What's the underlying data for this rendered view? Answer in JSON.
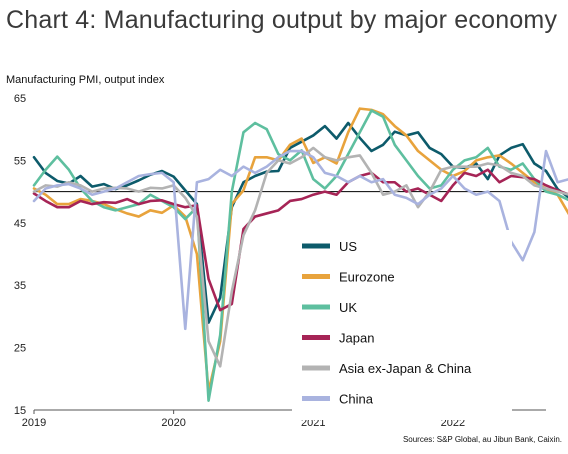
{
  "title": "Chart 4: Manufacturing output by major economy",
  "source": "Sources: S&P Global, au Jibun Bank, Caixin.",
  "chart_data": {
    "type": "line",
    "ylabel": "Manufacturing PMI, output index",
    "xlabel": "",
    "ylim": [
      15,
      65
    ],
    "yticks": [
      15,
      25,
      35,
      45,
      55,
      65
    ],
    "reference_line": 50,
    "xlim": [
      0,
      44
    ],
    "xtick_labels": [
      {
        "label": "2019",
        "x": 0
      },
      {
        "label": "2020",
        "x": 12
      },
      {
        "label": "2021",
        "x": 24
      },
      {
        "label": "2022",
        "x": 36
      }
    ],
    "legend_position": "center",
    "series": [
      {
        "name": "US",
        "color": "#0d5b6b",
        "values": [
          55.5,
          53.0,
          51.7,
          51.3,
          52.5,
          50.8,
          51.2,
          50.4,
          51.0,
          51.8,
          52.7,
          53.3,
          52.4,
          50.2,
          48.0,
          29.0,
          33.0,
          47.5,
          51.5,
          52.5,
          53.2,
          53.3,
          57.0,
          58.0,
          59.0,
          60.5,
          58.5,
          61.0,
          58.6,
          56.5,
          57.5,
          59.6,
          59.0,
          59.5,
          57.0,
          56.0,
          54.0,
          53.8,
          54.5,
          52.0,
          55.8,
          57.0,
          57.6,
          54.5,
          53.3,
          50.4,
          49.0
        ]
      },
      {
        "name": "Eurozone",
        "color": "#e8a33c",
        "values": [
          50.5,
          49.5,
          48.0,
          48.0,
          48.8,
          48.5,
          48.0,
          47.2,
          46.5,
          46.0,
          47.0,
          46.6,
          47.8,
          46.0,
          40.0,
          18.0,
          26.0,
          48.0,
          50.2,
          55.5,
          55.5,
          55.0,
          57.5,
          58.5,
          54.6,
          55.5,
          54.5,
          59.5,
          63.3,
          63.1,
          62.4,
          60.5,
          59.0,
          56.5,
          55.0,
          53.5,
          52.5,
          53.3,
          55.0,
          55.5,
          55.8,
          54.5,
          53.0,
          51.5,
          50.5,
          49.5,
          46.3
        ]
      },
      {
        "name": "UK",
        "color": "#5ebf9f",
        "values": [
          51.0,
          53.5,
          55.6,
          53.5,
          50.5,
          48.5,
          47.5,
          47.0,
          47.5,
          48.0,
          49.5,
          48.5,
          47.5,
          45.6,
          47.5,
          16.5,
          27.0,
          50.0,
          59.5,
          61.0,
          60.0,
          56.0,
          55.0,
          56.6,
          52.0,
          50.5,
          52.5,
          56.0,
          59.5,
          63.0,
          62.0,
          57.5,
          55.0,
          52.5,
          50.5,
          51.0,
          53.5,
          55.0,
          55.5,
          57.0,
          54.0,
          53.5,
          54.5,
          52.0,
          50.0,
          49.5,
          48.6
        ]
      },
      {
        "name": "Japan",
        "color": "#a62456",
        "values": [
          49.7,
          48.5,
          47.5,
          47.5,
          48.5,
          48.0,
          48.3,
          48.2,
          48.8,
          48.0,
          48.5,
          48.6,
          48.0,
          47.5,
          47.8,
          36.0,
          31.0,
          32.0,
          44.0,
          46.0,
          46.5,
          47.0,
          48.5,
          48.8,
          49.5,
          50.0,
          49.5,
          51.5,
          52.5,
          53.0,
          51.5,
          51.5,
          50.0,
          50.5,
          49.5,
          48.5,
          51.0,
          53.0,
          52.5,
          53.5,
          51.5,
          52.5,
          52.3,
          52.0,
          51.0,
          50.2,
          49.5
        ]
      },
      {
        "name": "Asia ex-Japan & China",
        "color": "#b3b3b3",
        "values": [
          50.0,
          51.0,
          50.8,
          51.5,
          51.0,
          50.0,
          50.5,
          50.6,
          50.5,
          50.0,
          50.6,
          50.5,
          51.0,
          49.0,
          46.0,
          26.0,
          22.0,
          34.0,
          43.0,
          47.0,
          53.0,
          55.0,
          54.5,
          55.5,
          57.0,
          55.5,
          55.0,
          55.5,
          55.8,
          53.0,
          49.5,
          50.0,
          51.0,
          47.5,
          50.0,
          53.5,
          54.0,
          54.0,
          54.0,
          54.5,
          54.2,
          53.0,
          52.5,
          51.0,
          50.5,
          50.0,
          49.5
        ]
      },
      {
        "name": "China",
        "color": "#a9b3df",
        "values": [
          48.5,
          50.5,
          51.0,
          51.2,
          50.5,
          49.5,
          50.0,
          50.5,
          51.5,
          52.5,
          52.8,
          53.0,
          51.5,
          28.0,
          51.5,
          52.0,
          53.5,
          52.5,
          54.0,
          53.0,
          54.0,
          55.5,
          56.5,
          56.5,
          55.5,
          53.0,
          52.5,
          51.5,
          52.5,
          51.5,
          52.0,
          49.5,
          49.0,
          48.0,
          49.5,
          50.5,
          52.5,
          50.5,
          49.5,
          50.0,
          48.5,
          42.0,
          39.0,
          43.5,
          56.5,
          51.5,
          52.0
        ]
      }
    ]
  }
}
